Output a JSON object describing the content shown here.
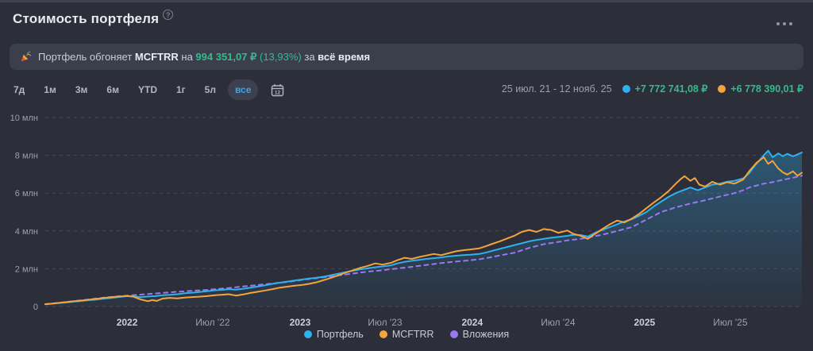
{
  "header": {
    "title": "Стоимость портфеля",
    "help_icon": "?",
    "menu_icon": "ellipsis"
  },
  "banner": {
    "icon": "party-popper",
    "text_prefix": "Портфель обгоняет ",
    "benchmark": "MCFTRR",
    "text_mid": " на ",
    "amount": "994 351,07 ₽",
    "percent": " (13,93%)",
    "text_for": " за ",
    "period": "всё время"
  },
  "controls": {
    "ranges": [
      "7д",
      "1м",
      "3м",
      "6м",
      "YTD",
      "1г",
      "5л",
      "все"
    ],
    "selected": "все",
    "calendar_icon": "calendar"
  },
  "summary": {
    "date_range": "25 июл. 21 - 12 нояб. 25",
    "portfolio_change": "+7 772 741,08 ₽",
    "benchmark_change": "+6 778 390,01 ₽"
  },
  "colors": {
    "background": "#2c2e39",
    "banner_bg": "#3b3e4b",
    "positive_green": "#35ba8d",
    "portfolio_blue": "#2fb1ef",
    "benchmark_orange": "#f3a43d",
    "invested_purple": "#9b78f2",
    "selected_range_blue": "#38a8ea",
    "gridline": "#474a58",
    "axis_text": "#9ba0af",
    "axis_text_bold": "#cdd0d9"
  },
  "chart_data": {
    "type": "line",
    "title": "Стоимость портфеля",
    "x_unit": "months since 2021-07-25",
    "x_start_date": "2021-07-25",
    "x_end_date": "2025-11-12",
    "y_unit": "млн ₽",
    "ylim": [
      0,
      10
    ],
    "grid": "horizontal-dashed",
    "legend_position": "bottom",
    "y_ticks": [
      {
        "v": 10,
        "label": "10 млн"
      },
      {
        "v": 8,
        "label": "8 млн"
      },
      {
        "v": 6,
        "label": "6 млн"
      },
      {
        "v": 4,
        "label": "4 млн"
      },
      {
        "v": 2,
        "label": "2 млн"
      },
      {
        "v": 0,
        "label": "0"
      }
    ],
    "x_ticks": [
      {
        "t": 5.58,
        "label": "2022",
        "major": true
      },
      {
        "t": 11.42,
        "label": "Июл '22",
        "major": false
      },
      {
        "t": 17.38,
        "label": "2023",
        "major": true
      },
      {
        "t": 23.17,
        "label": "Июл '23",
        "major": false
      },
      {
        "t": 29.12,
        "label": "2024",
        "major": true
      },
      {
        "t": 34.97,
        "label": "Июл '24",
        "major": false
      },
      {
        "t": 40.87,
        "label": "2025",
        "major": true
      },
      {
        "t": 46.72,
        "label": "Июл '25",
        "major": false
      }
    ],
    "series": [
      {
        "name": "Портфель",
        "color": "#2fb1ef",
        "style": "solid",
        "area": true,
        "points": [
          [
            0,
            0.12
          ],
          [
            0.5,
            0.15
          ],
          [
            1,
            0.19
          ],
          [
            1.5,
            0.22
          ],
          [
            2,
            0.26
          ],
          [
            2.5,
            0.3
          ],
          [
            3,
            0.34
          ],
          [
            3.5,
            0.37
          ],
          [
            4,
            0.42
          ],
          [
            4.5,
            0.45
          ],
          [
            5,
            0.5
          ],
          [
            5.6,
            0.55
          ],
          [
            6,
            0.54
          ],
          [
            6.5,
            0.5
          ],
          [
            7,
            0.53
          ],
          [
            7.5,
            0.55
          ],
          [
            8,
            0.6
          ],
          [
            8.5,
            0.62
          ],
          [
            9,
            0.65
          ],
          [
            9.5,
            0.7
          ],
          [
            10,
            0.73
          ],
          [
            10.5,
            0.77
          ],
          [
            11,
            0.81
          ],
          [
            11.6,
            0.86
          ],
          [
            12,
            0.88
          ],
          [
            12.5,
            0.92
          ],
          [
            13,
            0.89
          ],
          [
            13.5,
            0.94
          ],
          [
            14,
            1.0
          ],
          [
            14.5,
            1.06
          ],
          [
            15,
            1.12
          ],
          [
            15.5,
            1.2
          ],
          [
            16,
            1.26
          ],
          [
            16.5,
            1.32
          ],
          [
            17,
            1.38
          ],
          [
            17.6,
            1.44
          ],
          [
            18,
            1.48
          ],
          [
            18.5,
            1.52
          ],
          [
            19,
            1.58
          ],
          [
            19.5,
            1.66
          ],
          [
            20,
            1.74
          ],
          [
            20.5,
            1.82
          ],
          [
            21,
            1.9
          ],
          [
            21.5,
            1.97
          ],
          [
            22,
            2.02
          ],
          [
            22.5,
            2.08
          ],
          [
            23,
            2.12
          ],
          [
            23.6,
            2.18
          ],
          [
            24,
            2.28
          ],
          [
            24.5,
            2.36
          ],
          [
            25,
            2.42
          ],
          [
            25.5,
            2.47
          ],
          [
            26,
            2.52
          ],
          [
            26.5,
            2.56
          ],
          [
            27,
            2.6
          ],
          [
            27.5,
            2.65
          ],
          [
            28,
            2.69
          ],
          [
            28.5,
            2.72
          ],
          [
            29,
            2.74
          ],
          [
            29.6,
            2.78
          ],
          [
            30,
            2.85
          ],
          [
            30.5,
            2.95
          ],
          [
            31,
            3.05
          ],
          [
            31.5,
            3.15
          ],
          [
            32,
            3.25
          ],
          [
            32.5,
            3.35
          ],
          [
            33,
            3.45
          ],
          [
            33.5,
            3.52
          ],
          [
            34,
            3.58
          ],
          [
            34.5,
            3.64
          ],
          [
            35,
            3.68
          ],
          [
            35.6,
            3.74
          ],
          [
            36,
            3.8
          ],
          [
            36.5,
            3.78
          ],
          [
            37,
            3.7
          ],
          [
            37.5,
            3.9
          ],
          [
            38,
            4.05
          ],
          [
            38.5,
            4.2
          ],
          [
            39,
            4.35
          ],
          [
            39.5,
            4.5
          ],
          [
            40,
            4.62
          ],
          [
            40.5,
            4.8
          ],
          [
            41,
            5.0
          ],
          [
            41.5,
            5.3
          ],
          [
            42,
            5.55
          ],
          [
            42.5,
            5.8
          ],
          [
            43,
            6.0
          ],
          [
            43.5,
            6.15
          ],
          [
            44,
            6.3
          ],
          [
            44.5,
            6.15
          ],
          [
            45,
            6.3
          ],
          [
            45.5,
            6.45
          ],
          [
            46,
            6.5
          ],
          [
            46.5,
            6.6
          ],
          [
            47,
            6.65
          ],
          [
            47.6,
            6.78
          ],
          [
            48,
            7.05
          ],
          [
            48.5,
            7.55
          ],
          [
            49,
            8.0
          ],
          [
            49.3,
            8.25
          ],
          [
            49.6,
            7.9
          ],
          [
            50,
            8.1
          ],
          [
            50.3,
            7.95
          ],
          [
            50.6,
            8.08
          ],
          [
            51,
            7.95
          ],
          [
            51.3,
            8.05
          ],
          [
            51.6,
            8.15
          ]
        ]
      },
      {
        "name": "MCFTRR",
        "color": "#f3a43d",
        "style": "solid",
        "area": false,
        "points": [
          [
            0,
            0.12
          ],
          [
            0.5,
            0.16
          ],
          [
            1,
            0.2
          ],
          [
            1.5,
            0.24
          ],
          [
            2,
            0.28
          ],
          [
            2.5,
            0.32
          ],
          [
            3,
            0.36
          ],
          [
            3.5,
            0.41
          ],
          [
            4,
            0.45
          ],
          [
            4.5,
            0.5
          ],
          [
            5,
            0.53
          ],
          [
            5.6,
            0.56
          ],
          [
            6,
            0.52
          ],
          [
            6.5,
            0.38
          ],
          [
            7,
            0.28
          ],
          [
            7.3,
            0.34
          ],
          [
            7.6,
            0.3
          ],
          [
            8,
            0.42
          ],
          [
            8.5,
            0.46
          ],
          [
            9,
            0.43
          ],
          [
            9.5,
            0.47
          ],
          [
            10,
            0.5
          ],
          [
            10.5,
            0.52
          ],
          [
            11,
            0.55
          ],
          [
            11.6,
            0.6
          ],
          [
            12,
            0.62
          ],
          [
            12.5,
            0.65
          ],
          [
            13,
            0.58
          ],
          [
            13.5,
            0.64
          ],
          [
            14,
            0.72
          ],
          [
            14.5,
            0.78
          ],
          [
            15,
            0.85
          ],
          [
            15.5,
            0.92
          ],
          [
            16,
            1.0
          ],
          [
            16.5,
            1.05
          ],
          [
            17,
            1.1
          ],
          [
            17.6,
            1.15
          ],
          [
            18,
            1.2
          ],
          [
            18.5,
            1.28
          ],
          [
            19,
            1.4
          ],
          [
            19.5,
            1.52
          ],
          [
            20,
            1.65
          ],
          [
            20.5,
            1.8
          ],
          [
            21,
            1.92
          ],
          [
            21.5,
            2.05
          ],
          [
            22,
            2.15
          ],
          [
            22.5,
            2.28
          ],
          [
            23,
            2.22
          ],
          [
            23.6,
            2.32
          ],
          [
            24,
            2.45
          ],
          [
            24.5,
            2.58
          ],
          [
            25,
            2.52
          ],
          [
            25.5,
            2.62
          ],
          [
            26,
            2.7
          ],
          [
            26.5,
            2.78
          ],
          [
            27,
            2.72
          ],
          [
            27.5,
            2.82
          ],
          [
            28,
            2.92
          ],
          [
            28.5,
            2.98
          ],
          [
            29,
            3.02
          ],
          [
            29.6,
            3.08
          ],
          [
            30,
            3.18
          ],
          [
            30.5,
            3.32
          ],
          [
            31,
            3.45
          ],
          [
            31.5,
            3.6
          ],
          [
            32,
            3.75
          ],
          [
            32.5,
            3.95
          ],
          [
            33,
            4.05
          ],
          [
            33.5,
            3.95
          ],
          [
            34,
            4.1
          ],
          [
            34.5,
            4.05
          ],
          [
            35,
            3.9
          ],
          [
            35.6,
            4.02
          ],
          [
            36,
            3.85
          ],
          [
            36.5,
            3.75
          ],
          [
            37,
            3.58
          ],
          [
            37.5,
            3.85
          ],
          [
            38,
            4.1
          ],
          [
            38.5,
            4.35
          ],
          [
            39,
            4.55
          ],
          [
            39.5,
            4.45
          ],
          [
            40,
            4.65
          ],
          [
            40.5,
            4.9
          ],
          [
            41,
            5.2
          ],
          [
            41.5,
            5.5
          ],
          [
            42,
            5.78
          ],
          [
            42.5,
            6.1
          ],
          [
            43,
            6.5
          ],
          [
            43.3,
            6.72
          ],
          [
            43.6,
            6.9
          ],
          [
            44,
            6.65
          ],
          [
            44.3,
            6.8
          ],
          [
            44.6,
            6.45
          ],
          [
            45,
            6.35
          ],
          [
            45.5,
            6.6
          ],
          [
            46,
            6.45
          ],
          [
            46.5,
            6.58
          ],
          [
            47,
            6.5
          ],
          [
            47.6,
            6.72
          ],
          [
            48,
            7.15
          ],
          [
            48.5,
            7.6
          ],
          [
            49,
            7.9
          ],
          [
            49.3,
            7.55
          ],
          [
            49.6,
            7.7
          ],
          [
            50,
            7.3
          ],
          [
            50.3,
            7.1
          ],
          [
            50.6,
            6.98
          ],
          [
            51,
            7.15
          ],
          [
            51.3,
            6.92
          ],
          [
            51.6,
            7.08
          ]
        ]
      },
      {
        "name": "Вложения",
        "color": "#9b78f2",
        "style": "dashed",
        "area": false,
        "points": [
          [
            0,
            0.13
          ],
          [
            1,
            0.2
          ],
          [
            2,
            0.29
          ],
          [
            3,
            0.38
          ],
          [
            4,
            0.47
          ],
          [
            5,
            0.54
          ],
          [
            5.6,
            0.58
          ],
          [
            6.5,
            0.63
          ],
          [
            7,
            0.66
          ],
          [
            8,
            0.72
          ],
          [
            9,
            0.78
          ],
          [
            10,
            0.83
          ],
          [
            11,
            0.88
          ],
          [
            11.6,
            0.92
          ],
          [
            12.5,
            0.98
          ],
          [
            13,
            1.02
          ],
          [
            14,
            1.1
          ],
          [
            15,
            1.18
          ],
          [
            16,
            1.26
          ],
          [
            17,
            1.35
          ],
          [
            17.6,
            1.42
          ],
          [
            18.5,
            1.5
          ],
          [
            19,
            1.55
          ],
          [
            20,
            1.65
          ],
          [
            21,
            1.75
          ],
          [
            22,
            1.85
          ],
          [
            23,
            1.92
          ],
          [
            23.6,
            1.98
          ],
          [
            24.5,
            2.06
          ],
          [
            25,
            2.1
          ],
          [
            26,
            2.2
          ],
          [
            27,
            2.3
          ],
          [
            28,
            2.38
          ],
          [
            29,
            2.45
          ],
          [
            29.6,
            2.5
          ],
          [
            30.5,
            2.62
          ],
          [
            31,
            2.7
          ],
          [
            32,
            2.85
          ],
          [
            33,
            3.1
          ],
          [
            34,
            3.3
          ],
          [
            35,
            3.42
          ],
          [
            35.6,
            3.5
          ],
          [
            36.5,
            3.58
          ],
          [
            37,
            3.65
          ],
          [
            38,
            3.8
          ],
          [
            39,
            4.0
          ],
          [
            40,
            4.2
          ],
          [
            41,
            4.6
          ],
          [
            42,
            5.0
          ],
          [
            43,
            5.25
          ],
          [
            44,
            5.45
          ],
          [
            45,
            5.62
          ],
          [
            46,
            5.82
          ],
          [
            47,
            6.0
          ],
          [
            47.6,
            6.15
          ],
          [
            48,
            6.3
          ],
          [
            48.5,
            6.4
          ],
          [
            49,
            6.5
          ],
          [
            49.6,
            6.58
          ],
          [
            50,
            6.65
          ],
          [
            50.6,
            6.75
          ],
          [
            51,
            6.82
          ],
          [
            51.6,
            6.92
          ]
        ]
      }
    ]
  }
}
